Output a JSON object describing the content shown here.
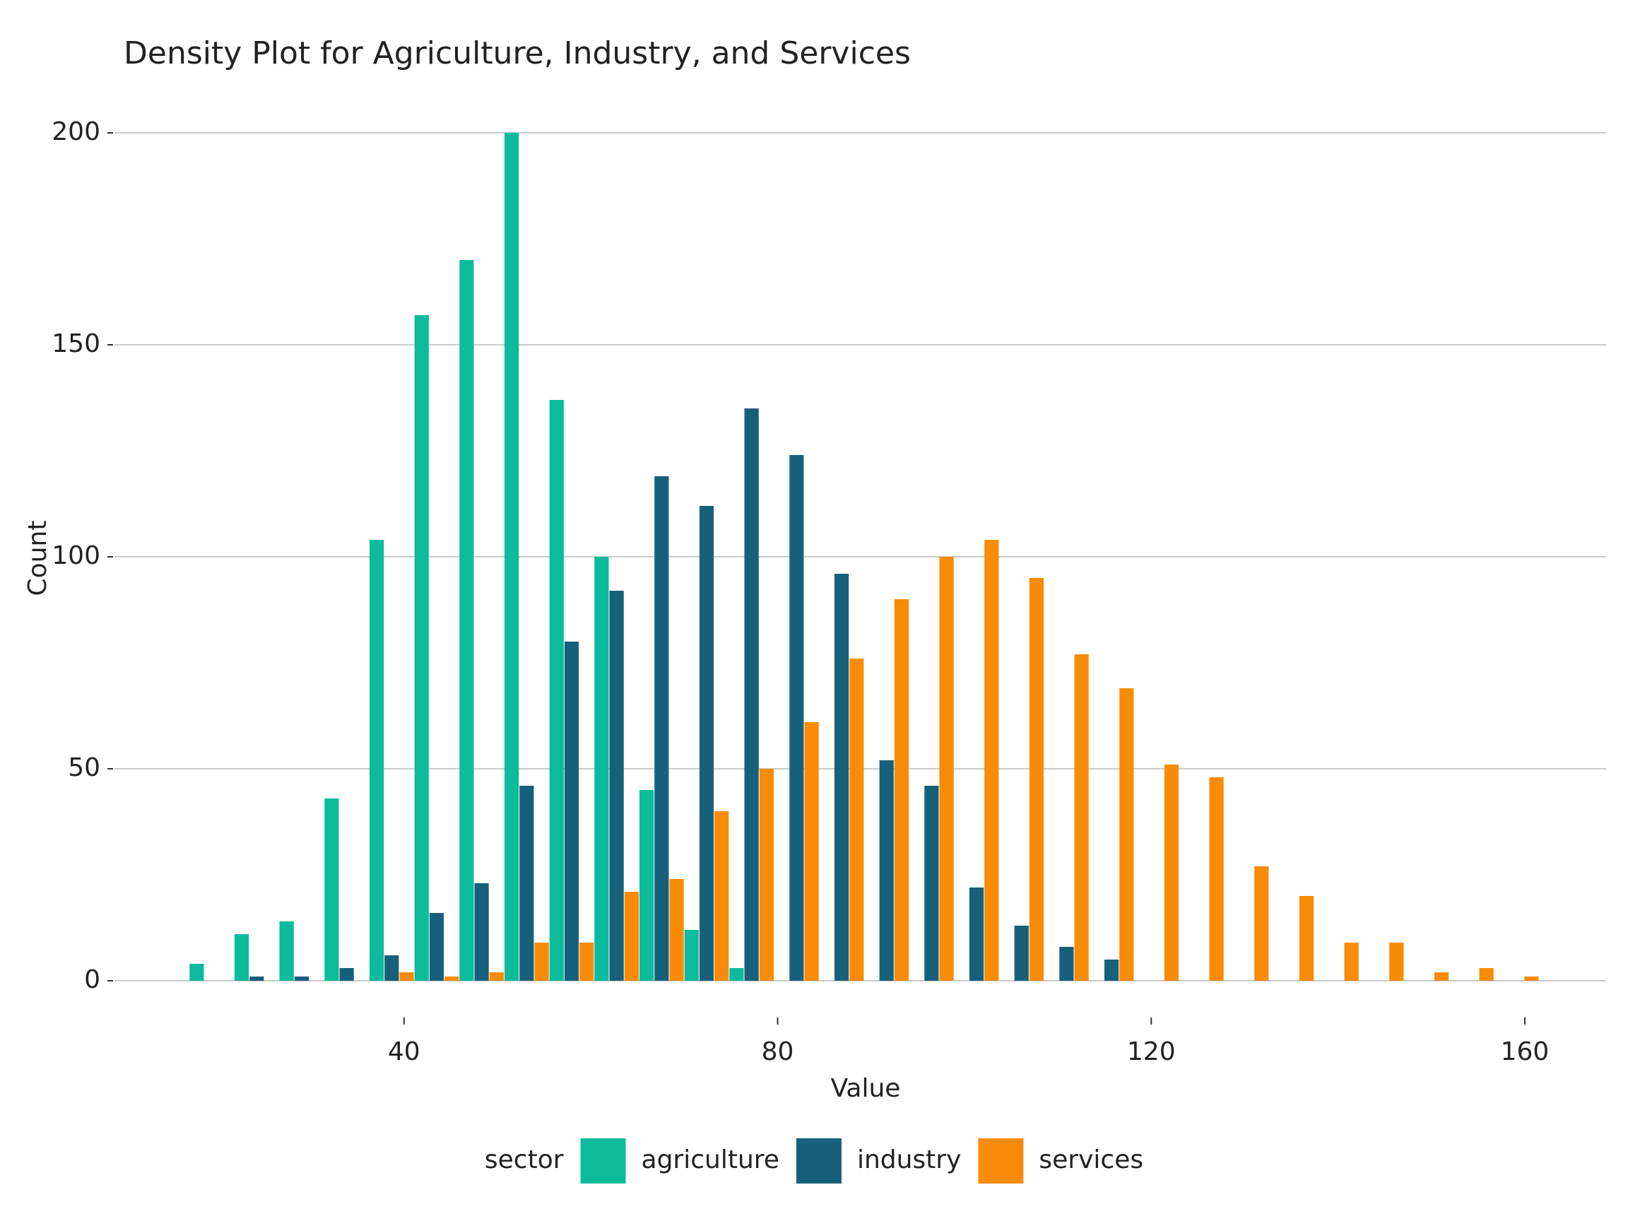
{
  "chart_data": {
    "type": "histogram",
    "title": "Density Plot for Agriculture, Industry, and Services",
    "x_label": "Value",
    "y_label": "Count",
    "legend_title": "sector",
    "legend_position": "bottom",
    "grid": true,
    "bins": [
      17.0,
      21.82,
      26.63,
      31.45,
      36.27,
      41.09,
      45.9,
      50.72,
      55.54,
      60.35,
      65.17,
      69.99,
      74.8,
      79.62,
      84.44,
      89.26,
      94.07,
      98.89,
      103.71,
      108.52,
      113.34,
      118.16,
      122.97,
      127.79,
      132.61,
      137.43,
      142.24,
      147.06,
      151.88,
      156.69,
      161.51
    ],
    "series": [
      {
        "name": "agriculture",
        "color": "#0bbb9c",
        "values": [
          4,
          11,
          14,
          43,
          104,
          157,
          170,
          200,
          137,
          100,
          45,
          12,
          3,
          0,
          0,
          0,
          0,
          0,
          0,
          0,
          0,
          0,
          0,
          0,
          0,
          0,
          0,
          0,
          0,
          0
        ]
      },
      {
        "name": "industry",
        "color": "#17607b",
        "values": [
          0,
          1,
          1,
          3,
          6,
          16,
          23,
          46,
          80,
          92,
          119,
          112,
          135,
          124,
          96,
          52,
          46,
          22,
          13,
          8,
          5,
          0,
          0,
          0,
          0,
          0,
          0,
          0,
          0,
          0
        ]
      },
      {
        "name": "services",
        "color": "#f98b06",
        "values": [
          0,
          0,
          0,
          0,
          2,
          1,
          2,
          9,
          9,
          21,
          24,
          40,
          50,
          61,
          76,
          90,
          100,
          104,
          95,
          77,
          69,
          51,
          48,
          27,
          20,
          9,
          9,
          2,
          3,
          1
        ]
      }
    ],
    "xlim": [
      9,
      168.7
    ],
    "ylim": [
      -10,
      205
    ],
    "xticks": [
      40,
      80,
      120,
      160
    ],
    "yticks": [
      0,
      50,
      100,
      150,
      200
    ]
  }
}
